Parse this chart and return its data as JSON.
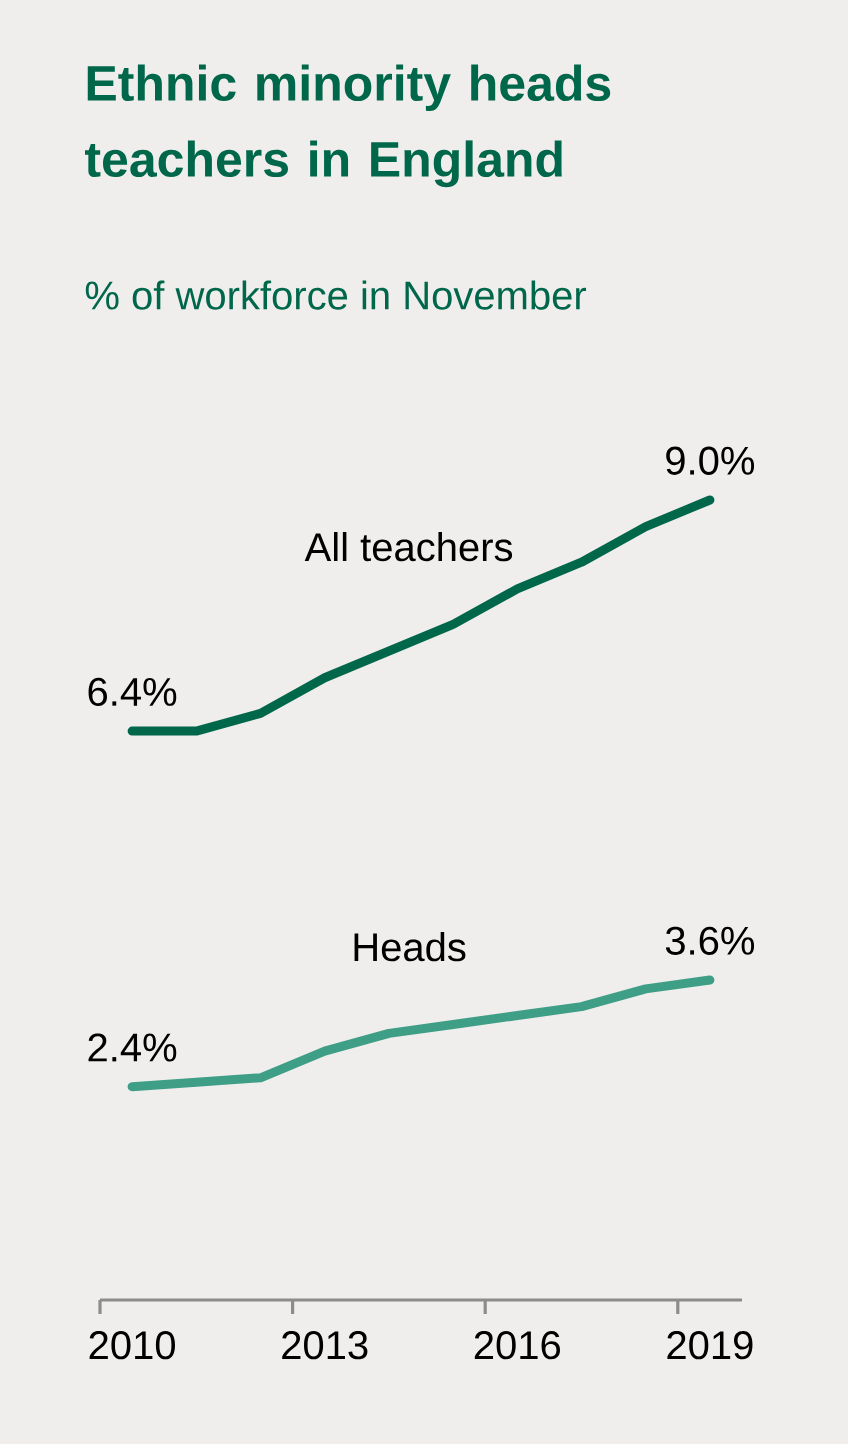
{
  "chart_data": {
    "type": "line",
    "title": "Ethnic minority heads teachers in England",
    "subtitle": "% of workforce in November",
    "x": [
      2010,
      2011,
      2012,
      2013,
      2014,
      2015,
      2016,
      2017,
      2018,
      2019
    ],
    "xlim": [
      2009.5,
      2019.5
    ],
    "xticks": [
      {
        "value": 2009.5,
        "label": null
      },
      2010,
      {
        "value": 2012.5,
        "label": null
      },
      2013,
      {
        "value": 2015.5,
        "label": null
      },
      2016,
      {
        "value": 2018.5,
        "label": null
      },
      2019
    ],
    "tick_labels": "x",
    "marker": "none",
    "series": [
      {
        "name": "All teachers",
        "color": "#00674a",
        "values": [
          6.4,
          6.4,
          6.6,
          7.0,
          7.3,
          7.6,
          8.0,
          8.3,
          8.7,
          9.0
        ],
        "value_labels": [
          "6.4%",
          null,
          null,
          null,
          null,
          null,
          null,
          null,
          null,
          "9.0%"
        ]
      },
      {
        "name": "Heads",
        "color": "#3f9e86",
        "values": [
          2.4,
          2.45,
          2.5,
          2.8,
          3.0,
          3.1,
          3.2,
          3.3,
          3.5,
          3.6
        ],
        "value_labels": [
          "2.4%",
          null,
          null,
          null,
          null,
          null,
          null,
          null,
          null,
          "3.6%"
        ]
      }
    ]
  }
}
